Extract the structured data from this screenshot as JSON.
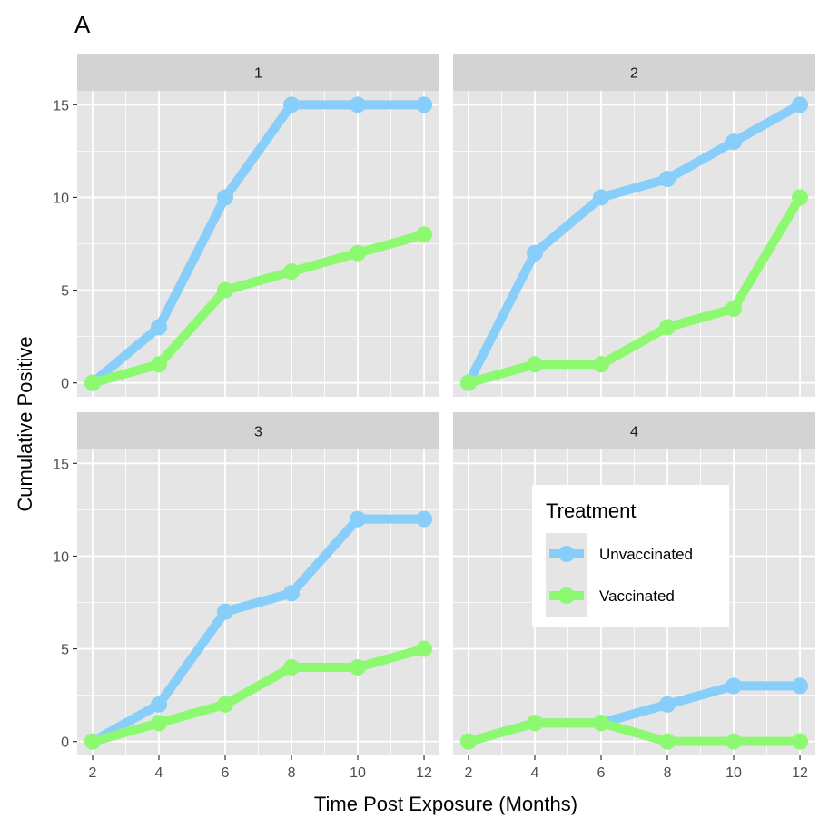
{
  "figure": {
    "tag": "A",
    "xlabel": "Time Post Exposure (Months)",
    "ylabel": "Cumulative Positive"
  },
  "colors": {
    "Unvaccinated": "#87CEFA",
    "Vaccinated": "#8CF970",
    "panel_bg": "#E5E5E5",
    "strip_bg": "#D3D3D3",
    "grid": "#FFFFFF"
  },
  "legend": {
    "title": "Treatment",
    "placement": "inside panel 4, upper-middle",
    "items": [
      {
        "label": "Unvaccinated"
      },
      {
        "label": "Vaccinated"
      }
    ]
  },
  "chart_data": {
    "type": "line",
    "facet_layout": "2x2 grid, shared axes",
    "x_ticks": [
      2,
      4,
      6,
      8,
      10,
      12
    ],
    "y_ticks": [
      0,
      5,
      10,
      15
    ],
    "xlim": [
      2,
      12
    ],
    "ylim": [
      0,
      15
    ],
    "grid": true,
    "facets": [
      {
        "label": "1",
        "series": [
          {
            "name": "Unvaccinated",
            "x": [
              2,
              4,
              6,
              8,
              10,
              12
            ],
            "y": [
              0,
              3,
              10,
              15,
              15,
              15
            ]
          },
          {
            "name": "Vaccinated",
            "x": [
              2,
              4,
              6,
              8,
              10,
              12
            ],
            "y": [
              0,
              1,
              5,
              6,
              7,
              8
            ]
          }
        ]
      },
      {
        "label": "2",
        "series": [
          {
            "name": "Unvaccinated",
            "x": [
              2,
              4,
              6,
              8,
              10,
              12
            ],
            "y": [
              0,
              7,
              10,
              11,
              13,
              15
            ]
          },
          {
            "name": "Vaccinated",
            "x": [
              2,
              4,
              6,
              8,
              10,
              12
            ],
            "y": [
              0,
              1,
              1,
              3,
              4,
              10
            ]
          }
        ]
      },
      {
        "label": "3",
        "series": [
          {
            "name": "Unvaccinated",
            "x": [
              2,
              4,
              6,
              8,
              10,
              12
            ],
            "y": [
              0,
              2,
              7,
              8,
              12,
              12
            ]
          },
          {
            "name": "Vaccinated",
            "x": [
              2,
              4,
              6,
              8,
              10,
              12
            ],
            "y": [
              0,
              1,
              2,
              4,
              4,
              5
            ]
          }
        ]
      },
      {
        "label": "4",
        "series": [
          {
            "name": "Unvaccinated",
            "x": [
              2,
              4,
              6,
              8,
              10,
              12
            ],
            "y": [
              0,
              1,
              1,
              2,
              3,
              3
            ]
          },
          {
            "name": "Vaccinated",
            "x": [
              2,
              4,
              6,
              8,
              10,
              12
            ],
            "y": [
              0,
              1,
              1,
              0,
              0,
              0
            ]
          }
        ]
      }
    ]
  }
}
